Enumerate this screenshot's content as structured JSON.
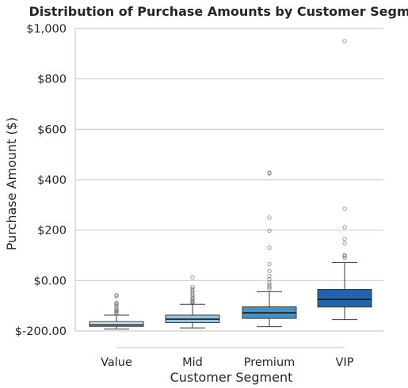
{
  "chart_data": {
    "type": "box",
    "title": "Distribution of Purchase Amounts by Customer Segment",
    "xlabel": "Customer Segment",
    "ylabel": "Purchase Amount ($)",
    "ylim": [
      -200,
      1000
    ],
    "yticks": [
      {
        "value": -200,
        "label": "$-200.00"
      },
      {
        "value": 0,
        "label": "$0.00"
      },
      {
        "value": 200,
        "label": "$200"
      },
      {
        "value": 400,
        "label": "$400"
      },
      {
        "value": 600,
        "label": "$600"
      },
      {
        "value": 800,
        "label": "$800"
      },
      {
        "value": 1000,
        "label": "$1,000"
      }
    ],
    "grid": "horizontal",
    "categories": [
      "Value",
      "Mid",
      "Premium",
      "VIP"
    ],
    "boxes": [
      {
        "category": "Value",
        "color": "#d1e2f0",
        "whisker_low": -192,
        "q1": -182,
        "median": -176,
        "q3": -163,
        "whisker_high": -137,
        "fliers": [
          -132,
          -128,
          -122,
          -118,
          -113,
          -106,
          -97,
          -91,
          -88,
          -62,
          -58
        ]
      },
      {
        "category": "Mid",
        "color": "#93c3df",
        "whisker_low": -188,
        "q1": -167,
        "median": -153,
        "q3": -137,
        "whisker_high": -94,
        "fliers": [
          -90,
          -85,
          -82,
          -75,
          -70,
          -63,
          -55,
          -48,
          -40,
          -33,
          -25,
          13
        ]
      },
      {
        "category": "Premium",
        "color": "#4891c6",
        "whisker_low": -183,
        "q1": -150,
        "median": -128,
        "q3": -104,
        "whisker_high": -44,
        "fliers": [
          -32,
          -25,
          -18,
          -8,
          5,
          18,
          38,
          65,
          130,
          198,
          250,
          425,
          428
        ]
      },
      {
        "category": "VIP",
        "color": "#2363a7",
        "whisker_low": -155,
        "q1": -105,
        "median": -75,
        "q3": -35,
        "whisker_high": 72,
        "fliers": [
          90,
          97,
          102,
          148,
          165,
          212,
          285,
          950
        ]
      }
    ]
  }
}
